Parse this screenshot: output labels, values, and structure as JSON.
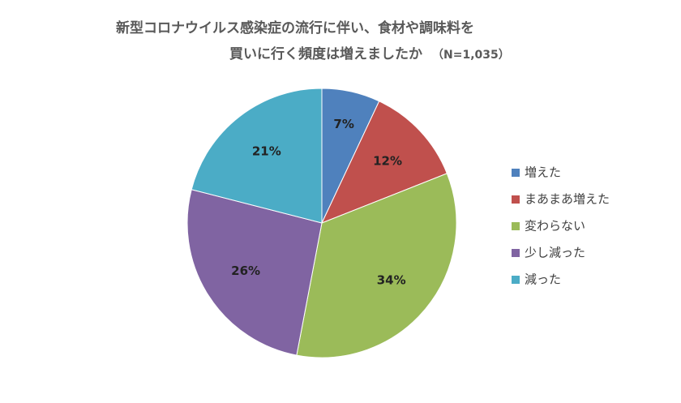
{
  "chart_data": {
    "type": "pie",
    "title_line1": "新型コロナウイルス感染症の流行に伴い、食材や調味料を",
    "title_line2": "買いに行く頻度は増えましたか",
    "sample_note": "（N=1,035）",
    "slices": [
      {
        "label": "増えた",
        "value": 7,
        "display": "7%",
        "color": "#4f81bd"
      },
      {
        "label": "まあまあ増えた",
        "value": 12,
        "display": "12%",
        "color": "#c0504d"
      },
      {
        "label": "変わらない",
        "value": 34,
        "display": "34%",
        "color": "#9bbb59"
      },
      {
        "label": "少し減った",
        "value": 26,
        "display": "26%",
        "color": "#8064a2"
      },
      {
        "label": "減った",
        "value": 21,
        "display": "21%",
        "color": "#4bacc6"
      }
    ],
    "legend_position": "right"
  }
}
